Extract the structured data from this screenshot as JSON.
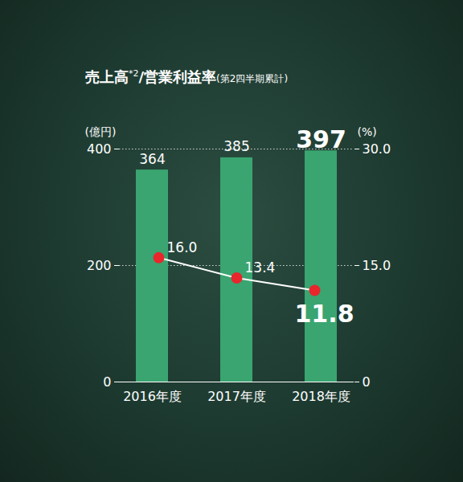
{
  "chart_data": {
    "type": "bar",
    "title": "売上高*2/営業利益率",
    "subtitle": "(第2四半期累計)",
    "categories": [
      "2016年度",
      "2017年度",
      "2018年度"
    ],
    "series": [
      {
        "type": "bar",
        "color": "#3aa570",
        "values": [
          364,
          385,
          397
        ],
        "data_labels": true
      },
      {
        "type": "line",
        "axis": "y2",
        "color": "#ffffff",
        "marker": "circle",
        "values": [
          16.0,
          13.4,
          11.8
        ],
        "value_labels": [
          "16.0",
          "13.4",
          "11.8"
        ],
        "data_labels": true
      }
    ],
    "ylabel": "(億円)",
    "y2label": "(%)",
    "ylim": [
      0,
      400
    ],
    "yticks": [
      0,
      200,
      400
    ],
    "y2lim": [
      0,
      30
    ],
    "y2ticks": [
      0,
      {
        "value": 15,
        "label": "15.0"
      },
      {
        "value": 30,
        "label": "30.0"
      }
    ],
    "grid": true
  }
}
